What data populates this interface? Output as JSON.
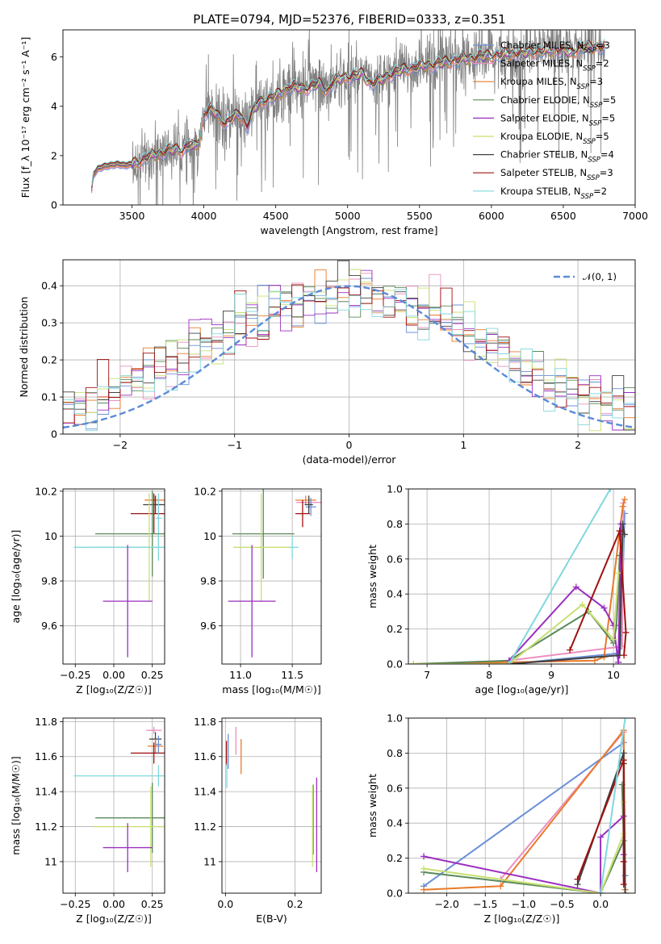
{
  "figure": {
    "title": "PLATE=0794, MJD=52376, FIBERID=0333, z=0.351"
  },
  "colors": {
    "chabrier_miles": "#6a8fd8",
    "salpeter_miles": "#ec8fc0",
    "kroupa_miles": "#e87a2a",
    "chabrier_elodie": "#5a8a5a",
    "salpeter_elodie": "#9a2fbf",
    "kroupa_elodie": "#c8e070",
    "chabrier_stelib": "#404040",
    "salpeter_stelib": "#a01010",
    "kroupa_stelib": "#80d8dc",
    "data_gray": "#808080",
    "normal_curve": "#5b8ad8",
    "grid": "#b0b0b0"
  },
  "chart_data": [
    {
      "id": "spectrum",
      "type": "line",
      "xlabel": "wavelength [Angstrom, rest frame]",
      "ylabel": "Flux [f_λ 10⁻¹⁷ erg cm⁻² s⁻¹ A⁻¹]",
      "xlim": [
        3020,
        7000
      ],
      "ylim": [
        0,
        7.1
      ],
      "xticks": [
        3500,
        4000,
        4500,
        5000,
        5500,
        6000,
        6500,
        7000
      ],
      "yticks": [
        0,
        2,
        4,
        6
      ],
      "grid": false,
      "legend": "upper right",
      "data_series": {
        "name": "",
        "x_range": [
          3220,
          6790
        ]
      },
      "continuum_knots": {
        "x": [
          3220,
          3230,
          3260,
          3300,
          3350,
          3400,
          3450,
          3500,
          3550,
          3600,
          3650,
          3700,
          3750,
          3800,
          3850,
          3900,
          3930,
          3970,
          4000,
          4050,
          4100,
          4150,
          4200,
          4250,
          4300,
          4350,
          4400,
          4500,
          4600,
          4700,
          4800,
          4860,
          4900,
          5000,
          5100,
          5170,
          5250,
          5300,
          5400,
          5500,
          5600,
          5700,
          5800,
          5900,
          6000,
          6100,
          6200,
          6300,
          6400,
          6500,
          6563,
          6600,
          6700,
          6790
        ],
        "y": [
          0.6,
          1.2,
          1.45,
          1.55,
          1.6,
          1.65,
          1.6,
          1.65,
          1.75,
          1.9,
          2.0,
          2.1,
          2.2,
          2.25,
          2.2,
          2.45,
          2.3,
          2.6,
          3.7,
          3.9,
          3.6,
          3.3,
          3.5,
          3.7,
          3.2,
          3.9,
          4.2,
          4.4,
          4.8,
          4.7,
          4.9,
          4.6,
          5.0,
          5.2,
          5.3,
          4.9,
          5.1,
          5.3,
          5.5,
          5.6,
          5.7,
          5.8,
          5.9,
          6.0,
          6.05,
          6.1,
          6.15,
          6.2,
          6.25,
          6.3,
          6.1,
          6.35,
          6.4,
          6.4
        ]
      },
      "series": [
        {
          "name": "Chabrier MILES, N_SSP=3",
          "color_key": "chabrier_miles"
        },
        {
          "name": "Salpeter MILES, N_SSP=2",
          "color_key": "salpeter_miles"
        },
        {
          "name": "Kroupa MILES, N_SSP=3",
          "color_key": "kroupa_miles"
        },
        {
          "name": "Chabrier ELODIE, N_SSP=5",
          "color_key": "chabrier_elodie"
        },
        {
          "name": "Salpeter ELODIE, N_SSP=5",
          "color_key": "salpeter_elodie"
        },
        {
          "name": "Kroupa ELODIE, N_SSP=5",
          "color_key": "kroupa_elodie"
        },
        {
          "name": "Chabrier STELIB, N_SSP=4",
          "color_key": "chabrier_stelib"
        },
        {
          "name": "Salpeter STELIB, N_SSP=3",
          "color_key": "salpeter_stelib"
        },
        {
          "name": "Kroupa STELIB, N_SSP=2",
          "color_key": "kroupa_stelib"
        }
      ]
    },
    {
      "id": "residuals",
      "type": "line",
      "xlabel": "(data-model)/error",
      "ylabel": "Normed distribution",
      "xlim": [
        -2.5,
        2.5
      ],
      "ylim": [
        0,
        0.47
      ],
      "xticks": [
        -2,
        -1,
        0,
        1,
        2
      ],
      "yticks": [
        0.0,
        0.1,
        0.2,
        0.3,
        0.4
      ],
      "grid": true,
      "legend": "upper right",
      "reference_curve": {
        "name": "𝒩(0, 1)",
        "mean": 0,
        "sigma": 1
      },
      "bin_width": 0.1,
      "bin_start": -2.5
    },
    {
      "id": "age_vs_Z",
      "type": "scatter",
      "xlabel": "Z [log₁₀(Z/Z☉)]",
      "ylabel": "age  [log₁₀(age/yr)]",
      "xlim": [
        -0.33,
        0.33
      ],
      "ylim": [
        9.43,
        10.21
      ],
      "xticks": [
        -0.25,
        0.0,
        0.25
      ],
      "yticks": [
        9.6,
        9.8,
        10.0,
        10.2
      ],
      "grid": true,
      "points": [
        {
          "series": "salpeter_miles",
          "x": 0.26,
          "y": 10.16,
          "xerr": 0.05,
          "yerr": 0.01
        },
        {
          "series": "kroupa_miles",
          "x": 0.27,
          "y": 10.16,
          "xerr": 0.07,
          "yerr": 0.02
        },
        {
          "series": "chabrier_miles",
          "x": 0.29,
          "y": 10.14,
          "xerr": 0.02,
          "yerr": 0.03
        },
        {
          "series": "chabrier_stelib",
          "x": 0.27,
          "y": 10.14,
          "xerr": 0.08,
          "yerr": 0.04
        },
        {
          "series": "salpeter_stelib",
          "x": 0.26,
          "y": 10.1,
          "xerr": 0.15,
          "yerr": 0.09
        },
        {
          "series": "kroupa_stelib",
          "x": 0.29,
          "y": 10.08,
          "xerr": 0.02,
          "yerr": 0.11
        },
        {
          "series": "chabrier_elodie",
          "x": 0.25,
          "y": 10.01,
          "xerr": 0.37,
          "yerr": 0.19
        },
        {
          "series": "kroupa_elodie",
          "x": 0.23,
          "y": 9.95,
          "xerr": 0.37,
          "yerr": 0.24
        },
        {
          "series": "kroupa_stelib",
          "x": 0.29,
          "y": 9.95,
          "xerr": 0.55,
          "yerr": 0.06
        },
        {
          "series": "salpeter_elodie",
          "x": 0.09,
          "y": 9.71,
          "xerr": 0.16,
          "yerr": 0.25
        }
      ]
    },
    {
      "id": "age_vs_mass",
      "type": "scatter",
      "xlabel": "mass [log₁₀(M/M☉)]",
      "ylabel": "",
      "xlim": [
        10.82,
        11.78
      ],
      "ylim": [
        9.43,
        10.21
      ],
      "xticks": [
        11.0,
        11.5
      ],
      "yticks": [
        9.6,
        9.8,
        10.0,
        10.2
      ],
      "grid": true,
      "points": [
        {
          "series": "salpeter_miles",
          "x": 11.66,
          "y": 10.15,
          "xerr": 0.12,
          "yerr": 0.03
        },
        {
          "series": "kroupa_miles",
          "x": 11.63,
          "y": 10.16,
          "xerr": 0.1,
          "yerr": 0.02
        },
        {
          "series": "chabrier_miles",
          "x": 11.68,
          "y": 10.13,
          "xerr": 0.05,
          "yerr": 0.04
        },
        {
          "series": "chabrier_stelib",
          "x": 11.66,
          "y": 10.14,
          "xerr": 0.04,
          "yerr": 0.04
        },
        {
          "series": "salpeter_stelib",
          "x": 11.6,
          "y": 10.1,
          "xerr": 0.07,
          "yerr": 0.06
        },
        {
          "series": "kroupa_stelib",
          "x": 11.5,
          "y": 9.95,
          "xerr": 0.06,
          "yerr": 0.05
        },
        {
          "series": "chabrier_elodie",
          "x": 11.22,
          "y": 10.01,
          "xerr": 0.3,
          "yerr": 0.2
        },
        {
          "series": "kroupa_elodie",
          "x": 11.2,
          "y": 9.95,
          "xerr": 0.27,
          "yerr": 0.24
        },
        {
          "series": "salpeter_elodie",
          "x": 11.11,
          "y": 9.71,
          "xerr": 0.23,
          "yerr": 0.25
        }
      ]
    },
    {
      "id": "massweight_vs_age",
      "type": "line",
      "xlabel": "age  [log₁₀(age/yr)]",
      "ylabel": "mass weight",
      "xlim": [
        6.7,
        10.35
      ],
      "ylim": [
        0,
        1.0
      ],
      "xticks": [
        7,
        8,
        9,
        10
      ],
      "yticks": [
        0.0,
        0.2,
        0.4,
        0.6,
        0.8,
        1.0
      ],
      "grid": true,
      "series": [
        {
          "color_key": "chabrier_miles",
          "x": [
            8.32,
            10.05,
            10.12,
            10.18
          ],
          "y": [
            0.0,
            0.06,
            0.1,
            0.86
          ]
        },
        {
          "color_key": "salpeter_miles",
          "x": [
            8.32,
            10.14,
            10.16
          ],
          "y": [
            0.02,
            0.1,
            0.92
          ]
        },
        {
          "color_key": "kroupa_miles",
          "x": [
            6.78,
            8.32,
            9.7,
            9.85,
            10.15,
            10.18
          ],
          "y": [
            0.0,
            0.01,
            0.02,
            0.04,
            0.9,
            0.94
          ]
        },
        {
          "color_key": "chabrier_elodie",
          "x": [
            6.78,
            8.32,
            9.6,
            10.0,
            10.05,
            10.1
          ],
          "y": [
            0.0,
            0.02,
            0.3,
            0.12,
            0.22,
            0.62
          ]
        },
        {
          "color_key": "salpeter_elodie",
          "x": [
            8.32,
            9.4,
            9.85,
            10.0,
            10.08,
            10.12
          ],
          "y": [
            0.02,
            0.44,
            0.32,
            0.22,
            0.01,
            0.8
          ]
        },
        {
          "color_key": "kroupa_elodie",
          "x": [
            6.78,
            8.32,
            9.5,
            10.0,
            10.08
          ],
          "y": [
            0.0,
            0.0,
            0.34,
            0.14,
            0.52
          ]
        },
        {
          "color_key": "chabrier_stelib",
          "x": [
            8.32,
            10.1,
            10.15,
            10.18
          ],
          "y": [
            0.0,
            0.05,
            0.8,
            0.74
          ]
        },
        {
          "color_key": "salpeter_stelib",
          "x": [
            9.3,
            10.1,
            10.2,
            10.17
          ],
          "y": [
            0.08,
            0.76,
            0.18,
            0.05
          ]
        },
        {
          "color_key": "kroupa_stelib",
          "x": [
            8.32,
            9.95
          ],
          "y": [
            0.0,
            1.0
          ]
        }
      ]
    },
    {
      "id": "mass_vs_Z",
      "type": "scatter",
      "xlabel": "Z [log₁₀(Z/Z☉)]",
      "ylabel": "mass [log₁₀(M/M☉)]",
      "xlim": [
        -0.33,
        0.33
      ],
      "ylim": [
        10.82,
        11.82
      ],
      "xticks": [
        -0.25,
        0.0,
        0.25
      ],
      "yticks": [
        11.0,
        11.2,
        11.4,
        11.6,
        11.8
      ],
      "grid": true,
      "points": [
        {
          "series": "salpeter_miles",
          "x": 0.26,
          "y": 11.75,
          "xerr": 0.05,
          "yerr": 0.02
        },
        {
          "series": "chabrier_stelib",
          "x": 0.27,
          "y": 11.7,
          "xerr": 0.04,
          "yerr": 0.04
        },
        {
          "series": "kroupa_miles",
          "x": 0.27,
          "y": 11.66,
          "xerr": 0.05,
          "yerr": 0.04
        },
        {
          "series": "salpeter_stelib",
          "x": 0.26,
          "y": 11.62,
          "xerr": 0.15,
          "yerr": 0.06
        },
        {
          "series": "chabrier_miles",
          "x": 0.29,
          "y": 11.67,
          "xerr": 0.02,
          "yerr": 0.05
        },
        {
          "series": "kroupa_stelib",
          "x": 0.29,
          "y": 11.49,
          "xerr": 0.55,
          "yerr": 0.06
        },
        {
          "series": "chabrier_elodie",
          "x": 0.25,
          "y": 11.25,
          "xerr": 0.37,
          "yerr": 0.2
        },
        {
          "series": "kroupa_elodie",
          "x": 0.24,
          "y": 11.2,
          "xerr": 0.37,
          "yerr": 0.23
        },
        {
          "series": "salpeter_elodie",
          "x": 0.09,
          "y": 11.08,
          "xerr": 0.16,
          "yerr": 0.14
        }
      ]
    },
    {
      "id": "mass_vs_EBV",
      "type": "scatter",
      "xlabel": "E(B-V)",
      "ylabel": "",
      "xlim": [
        -0.01,
        0.275
      ],
      "ylim": [
        10.82,
        11.82
      ],
      "xticks": [
        0.0,
        0.2
      ],
      "yticks": [
        11.0,
        11.2,
        11.4,
        11.6,
        11.8
      ],
      "grid": true,
      "points": [
        {
          "series": "salpeter_miles",
          "x": 0.03,
          "y": 11.69,
          "xerr": 0.0,
          "yerr": 0.08
        },
        {
          "series": "chabrier_miles",
          "x": 0.008,
          "y": 11.63,
          "xerr": 0.0,
          "yerr": 0.1
        },
        {
          "series": "kroupa_miles",
          "x": 0.045,
          "y": 11.6,
          "xerr": 0.0,
          "yerr": 0.1
        },
        {
          "series": "salpeter_stelib",
          "x": 0.003,
          "y": 11.62,
          "xerr": 0.0,
          "yerr": 0.07
        },
        {
          "series": "kroupa_stelib",
          "x": 0.004,
          "y": 11.49,
          "xerr": 0.0,
          "yerr": 0.07
        },
        {
          "series": "chabrier_elodie",
          "x": 0.252,
          "y": 11.24,
          "xerr": 0.0,
          "yerr": 0.2
        },
        {
          "series": "kroupa_elodie",
          "x": 0.25,
          "y": 11.2,
          "xerr": 0.0,
          "yerr": 0.23
        },
        {
          "series": "salpeter_elodie",
          "x": 0.262,
          "y": 11.21,
          "xerr": 0.0,
          "yerr": 0.27
        }
      ]
    },
    {
      "id": "massweight_vs_Z",
      "type": "line",
      "xlabel": "Z [log₁₀(Z/Z☉)]",
      "ylabel": "mass weight",
      "xlim": [
        -2.5,
        0.45
      ],
      "ylim": [
        0,
        1.0
      ],
      "xticks": [
        -2.0,
        -1.5,
        -1.0,
        -0.5,
        0.0
      ],
      "yticks": [
        0.0,
        0.2,
        0.4,
        0.6,
        0.8,
        1.0
      ],
      "grid": true,
      "series": [
        {
          "color_key": "chabrier_miles",
          "x": [
            -2.3,
            0.3,
            0.32
          ],
          "y": [
            0.04,
            0.86,
            0.1
          ]
        },
        {
          "color_key": "salpeter_miles",
          "x": [
            -1.3,
            0.3,
            0.32
          ],
          "y": [
            0.08,
            0.92,
            0.02
          ]
        },
        {
          "color_key": "kroupa_miles",
          "x": [
            -2.3,
            -1.3,
            0.3,
            0.32
          ],
          "y": [
            0.02,
            0.04,
            0.93,
            0.02
          ]
        },
        {
          "color_key": "chabrier_elodie",
          "x": [
            -2.3,
            0.0,
            0.3,
            0.28
          ],
          "y": [
            0.12,
            0.0,
            0.3,
            0.62
          ]
        },
        {
          "color_key": "salpeter_elodie",
          "x": [
            -2.3,
            0.0,
            0.0,
            0.3,
            0.3
          ],
          "y": [
            0.21,
            0.0,
            0.32,
            0.44,
            0.22
          ]
        },
        {
          "color_key": "kroupa_elodie",
          "x": [
            -2.3,
            0.0,
            0.3,
            0.3
          ],
          "y": [
            0.14,
            0.0,
            0.34,
            0.52
          ]
        },
        {
          "color_key": "chabrier_stelib",
          "x": [
            -0.3,
            0.3,
            0.3,
            0.32
          ],
          "y": [
            0.05,
            0.8,
            0.74,
            0.0
          ]
        },
        {
          "color_key": "salpeter_stelib",
          "x": [
            -0.3,
            0.3,
            0.3,
            0.3
          ],
          "y": [
            0.08,
            0.76,
            0.18,
            0.05
          ]
        },
        {
          "color_key": "kroupa_stelib",
          "x": [
            0.0,
            0.32
          ],
          "y": [
            0.0,
            1.0
          ]
        }
      ]
    }
  ]
}
